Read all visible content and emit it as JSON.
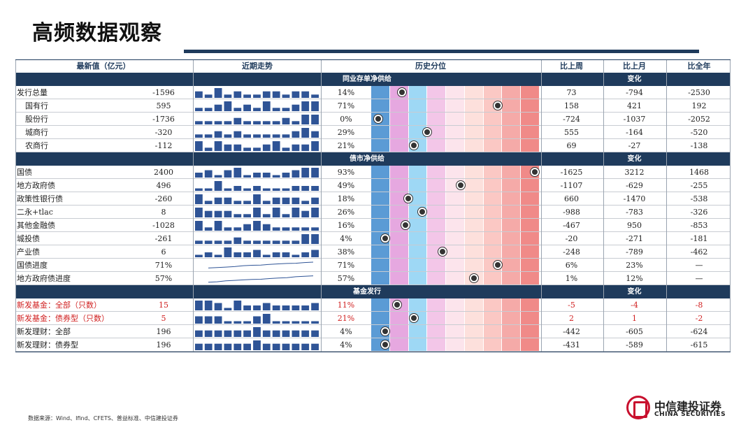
{
  "page_title": "高频数据观察",
  "headers": {
    "latest": "最新值（亿元）",
    "trend": "近期走势",
    "percentile": "历史分位",
    "wow": "比上周",
    "mom": "比上月",
    "yoy": "比全年"
  },
  "change_label": "变化",
  "colors": {
    "navy": "#1f3b5c",
    "bar": "#2f5496",
    "red_text": "#d02020",
    "strip": [
      "#5b9bd5",
      "#e6a8e0",
      "#9ed8f5",
      "#f3c6e8",
      "#fce4ec",
      "#fde0dc",
      "#fbc8c4",
      "#f5aaa8",
      "#f08a88"
    ]
  },
  "sections": [
    {
      "title": "同业存单净供给",
      "rows": [
        {
          "label": "发行总量",
          "value": "-1596",
          "pct": "14%",
          "pctv": 0.14,
          "wow": "73",
          "mom": "-794",
          "yoy": "-2530",
          "indent": false,
          "red": false,
          "spark": "bar",
          "series": [
            2,
            1,
            3,
            1,
            2,
            1,
            1,
            2,
            2,
            1,
            2,
            2,
            1
          ]
        },
        {
          "label": "国有行",
          "value": "595",
          "pct": "71%",
          "pctv": 0.71,
          "wow": "158",
          "mom": "421",
          "yoy": "192",
          "indent": true,
          "red": false,
          "spark": "bar",
          "series": [
            1,
            1,
            2,
            3,
            1,
            2,
            1,
            3,
            1,
            1,
            2,
            3,
            3
          ]
        },
        {
          "label": "股份行",
          "value": "-1736",
          "pct": "0%",
          "pctv": 0.0,
          "wow": "-724",
          "mom": "-1037",
          "yoy": "-2052",
          "indent": true,
          "red": false,
          "spark": "bar",
          "series": [
            1,
            1,
            1,
            1,
            2,
            1,
            1,
            1,
            1,
            2,
            1,
            3,
            3
          ]
        },
        {
          "label": "城商行",
          "value": "-320",
          "pct": "29%",
          "pctv": 0.29,
          "wow": "555",
          "mom": "-164",
          "yoy": "-520",
          "indent": true,
          "red": false,
          "spark": "bar",
          "series": [
            1,
            1,
            2,
            1,
            2,
            1,
            1,
            1,
            1,
            1,
            2,
            3,
            2
          ]
        },
        {
          "label": "农商行",
          "value": "-112",
          "pct": "21%",
          "pctv": 0.21,
          "wow": "69",
          "mom": "-27",
          "yoy": "-138",
          "indent": true,
          "red": false,
          "spark": "bar",
          "series": [
            3,
            1,
            3,
            2,
            2,
            1,
            1,
            2,
            3,
            1,
            2,
            2,
            3
          ]
        }
      ]
    },
    {
      "title": "债市净供给",
      "rows": [
        {
          "label": "国债",
          "value": "2400",
          "pct": "93%",
          "pctv": 0.93,
          "wow": "-1625",
          "mom": "3212",
          "yoy": "1468",
          "indent": false,
          "red": false,
          "spark": "bar",
          "series": [
            2,
            3,
            1,
            3,
            4,
            1,
            2,
            2,
            1,
            2,
            3,
            4,
            4
          ]
        },
        {
          "label": "地方政府债",
          "value": "496",
          "pct": "49%",
          "pctv": 0.49,
          "wow": "-1107",
          "mom": "-629",
          "yoy": "-255",
          "indent": false,
          "red": false,
          "spark": "bar",
          "series": [
            1,
            1,
            4,
            1,
            2,
            1,
            2,
            1,
            1,
            1,
            2,
            2,
            2
          ]
        },
        {
          "label": "政策性银行债",
          "value": "-260",
          "pct": "18%",
          "pctv": 0.18,
          "wow": "660",
          "mom": "-1470",
          "yoy": "-538",
          "indent": false,
          "red": false,
          "spark": "bar",
          "series": [
            3,
            1,
            2,
            2,
            1,
            1,
            3,
            1,
            2,
            2,
            2,
            1,
            2
          ]
        },
        {
          "label": "二永+tlac",
          "value": "8",
          "pct": "26%",
          "pctv": 0.26,
          "wow": "-988",
          "mom": "-783",
          "yoy": "-326",
          "indent": false,
          "red": false,
          "spark": "bar",
          "series": [
            3,
            2,
            2,
            2,
            1,
            1,
            3,
            1,
            3,
            1,
            3,
            2,
            3
          ]
        },
        {
          "label": "其他金融债",
          "value": "-1028",
          "pct": "16%",
          "pctv": 0.16,
          "wow": "-467",
          "mom": "950",
          "yoy": "-853",
          "indent": false,
          "red": false,
          "spark": "bar",
          "series": [
            3,
            1,
            3,
            1,
            1,
            2,
            3,
            2,
            1,
            1,
            1,
            1,
            1
          ]
        },
        {
          "label": "城投债",
          "value": "-261",
          "pct": "4%",
          "pctv": 0.04,
          "wow": "-20",
          "mom": "-271",
          "yoy": "-181",
          "indent": false,
          "red": false,
          "spark": "bar",
          "series": [
            1,
            1,
            1,
            1,
            2,
            1,
            1,
            1,
            1,
            1,
            1,
            3,
            3
          ]
        },
        {
          "label": "产业债",
          "value": "6",
          "pct": "38%",
          "pctv": 0.38,
          "wow": "-248",
          "mom": "-789",
          "yoy": "-462",
          "indent": false,
          "red": false,
          "spark": "bar",
          "series": [
            1,
            2,
            1,
            4,
            2,
            2,
            3,
            1,
            2,
            2,
            1,
            2,
            3
          ]
        },
        {
          "label": "国债进度",
          "value": "71%",
          "pct": "71%",
          "pctv": 0.71,
          "wow": "6%",
          "mom": "23%",
          "yoy": "—",
          "indent": false,
          "red": false,
          "spark": "line",
          "series": [
            0.2,
            0.25,
            0.3,
            0.35,
            0.45,
            0.5,
            0.52,
            0.6,
            0.65,
            0.7,
            0.72,
            0.8,
            0.85
          ]
        },
        {
          "label": "地方政府债进度",
          "value": "57%",
          "pct": "57%",
          "pctv": 0.57,
          "wow": "1%",
          "mom": "12%",
          "yoy": "—",
          "indent": false,
          "red": false,
          "spark": "line",
          "series": [
            0.1,
            0.15,
            0.25,
            0.3,
            0.35,
            0.4,
            0.42,
            0.5,
            0.55,
            0.6,
            0.7,
            0.75,
            0.8
          ]
        }
      ]
    },
    {
      "title": "基金发行",
      "rows": [
        {
          "label": "新发基金：全部（只数）",
          "value": "15",
          "pct": "11%",
          "pctv": 0.11,
          "wow": "-5",
          "mom": "-4",
          "yoy": "-8",
          "indent": false,
          "red": true,
          "spark": "bar",
          "series": [
            4,
            4,
            3,
            1,
            4,
            2,
            2,
            3,
            2,
            2,
            2,
            2,
            3
          ]
        },
        {
          "label": "新发基金：债券型（只数）",
          "value": "5",
          "pct": "21%",
          "pctv": 0.21,
          "wow": "2",
          "mom": "1",
          "yoy": "-2",
          "indent": false,
          "red": true,
          "spark": "bar",
          "series": [
            3,
            3,
            3,
            1,
            1,
            1,
            3,
            4,
            1,
            1,
            1,
            1,
            1
          ]
        },
        {
          "label": "新发理财：全部",
          "value": "196",
          "pct": "4%",
          "pctv": 0.04,
          "wow": "-442",
          "mom": "-605",
          "yoy": "-624",
          "indent": false,
          "red": false,
          "spark": "bar",
          "series": [
            2,
            2,
            2,
            2,
            2,
            2,
            3,
            2,
            2,
            2,
            2,
            2,
            2
          ]
        },
        {
          "label": "新发理财：债券型",
          "value": "196",
          "pct": "4%",
          "pctv": 0.04,
          "wow": "-431",
          "mom": "-589",
          "yoy": "-615",
          "indent": false,
          "red": false,
          "spark": "bar",
          "series": [
            2,
            2,
            2,
            2,
            2,
            2,
            3,
            2,
            2,
            2,
            2,
            2,
            2
          ]
        }
      ]
    }
  ],
  "footer": "数据来源：Wind、Ifind、CFETS、普益标准、中信建投证券",
  "logo": {
    "cn": "中信建投证券",
    "en": "CHINA SECURITIES"
  }
}
